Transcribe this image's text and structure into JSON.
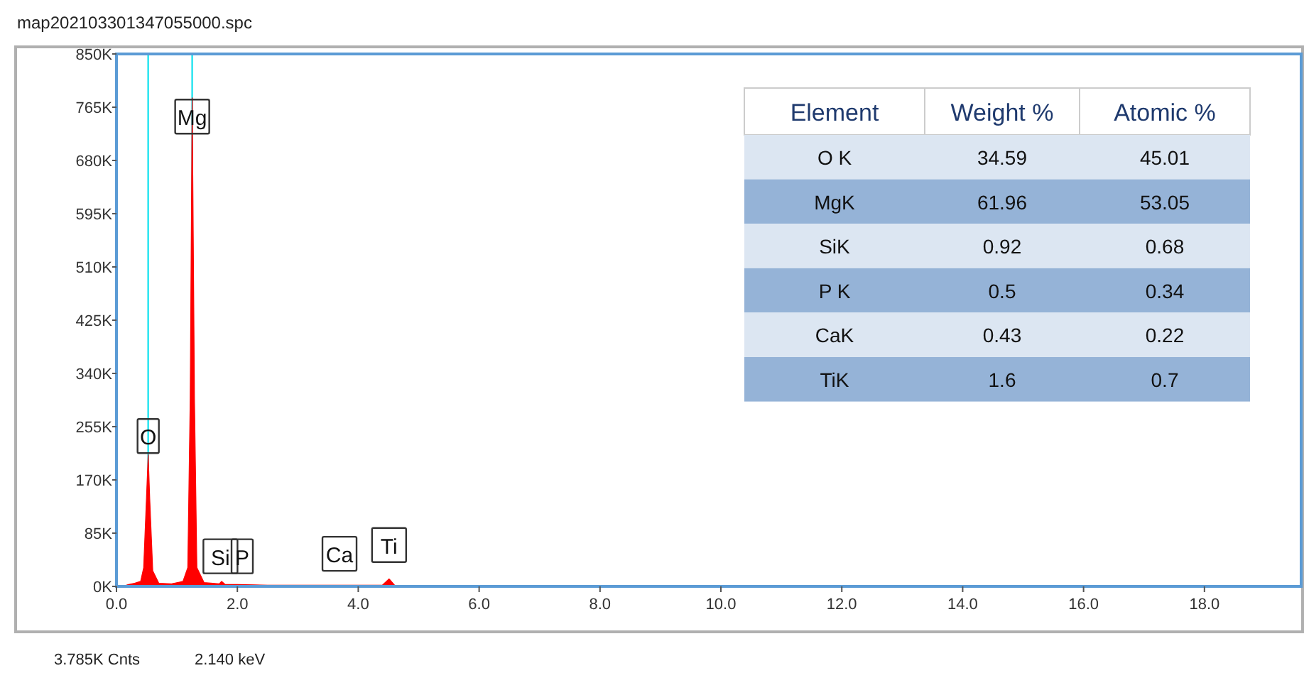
{
  "chart_data": [
    {
      "type": "area",
      "title": "map202103301347055000.spc",
      "xlim": [
        0,
        19.6
      ],
      "ylim": [
        0,
        850
      ],
      "xticks": [
        {
          "value": 0,
          "label": "0.0"
        },
        {
          "value": 2,
          "label": "2.0"
        },
        {
          "value": 4,
          "label": "4.0"
        },
        {
          "value": 6,
          "label": "6.0"
        },
        {
          "value": 8,
          "label": "8.0"
        },
        {
          "value": 10,
          "label": "10.0"
        },
        {
          "value": 12,
          "label": "12.0"
        },
        {
          "value": 14,
          "label": "14.0"
        },
        {
          "value": 16,
          "label": "16.0"
        },
        {
          "value": 18,
          "label": "18.0"
        }
      ],
      "yticks": [
        {
          "value": 0,
          "label": "0K"
        },
        {
          "value": 85,
          "label": "85K"
        },
        {
          "value": 170,
          "label": "170K"
        },
        {
          "value": 255,
          "label": "255K"
        },
        {
          "value": 340,
          "label": "340K"
        },
        {
          "value": 425,
          "label": "425K"
        },
        {
          "value": 510,
          "label": "510K"
        },
        {
          "value": 595,
          "label": "595K"
        },
        {
          "value": 680,
          "label": "680K"
        },
        {
          "value": 765,
          "label": "765K"
        },
        {
          "value": 850,
          "label": "850K"
        }
      ],
      "grid": false,
      "series": [
        {
          "color": "#ff0000",
          "x": [
            0.1,
            0.2,
            0.3,
            0.4,
            0.45,
            0.5,
            0.525,
            0.55,
            0.6,
            0.7,
            0.9,
            1.1,
            1.18,
            1.22,
            1.253,
            1.29,
            1.33,
            1.45,
            1.7,
            1.74,
            1.8,
            2.0,
            2.5,
            3.7,
            4.4,
            4.51,
            4.6,
            5.0,
            6,
            10,
            19.6
          ],
          "values": [
            0,
            3,
            5,
            8,
            30,
            150,
            210,
            140,
            25,
            5,
            4,
            8,
            30,
            300,
            780,
            300,
            30,
            6,
            4,
            8,
            3,
            3,
            2,
            2,
            2,
            12,
            2,
            1,
            1,
            1,
            1
          ]
        }
      ],
      "ref_lines": [
        {
          "axis": "x",
          "value": 0.525,
          "color": "#33e6f0"
        },
        {
          "axis": "x",
          "value": 1.253,
          "color": "#33e6f0"
        }
      ],
      "annotations": [
        {
          "text": "O",
          "x": 0.525,
          "y": 240
        },
        {
          "text": "Mg",
          "x": 1.253,
          "y": 750
        },
        {
          "text": "Si",
          "x": 1.72,
          "y": 48
        },
        {
          "text": "P",
          "x": 2.08,
          "y": 48
        },
        {
          "text": "Ca",
          "x": 3.69,
          "y": 52
        },
        {
          "text": "Ti",
          "x": 4.51,
          "y": 66
        },
        "3.785K Cnts",
        "2.140 keV"
      ]
    },
    {
      "type": "heatmap",
      "data_labels": true,
      "ylabel": "Element",
      "categories": [
        "Weight %",
        "Atomic %"
      ],
      "y_categories": [
        "O K",
        "MgK",
        "SiK",
        "P K",
        "CaK",
        "TiK"
      ],
      "cells": [
        [
          34.59,
          45.01
        ],
        [
          61.96,
          53.05
        ],
        [
          0.92,
          0.68
        ],
        [
          0.5,
          0.34
        ],
        [
          0.43,
          0.22
        ],
        [
          1.6,
          0.7
        ]
      ],
      "colors": [
        "#dce6f2",
        "#95b3d7"
      ]
    }
  ]
}
